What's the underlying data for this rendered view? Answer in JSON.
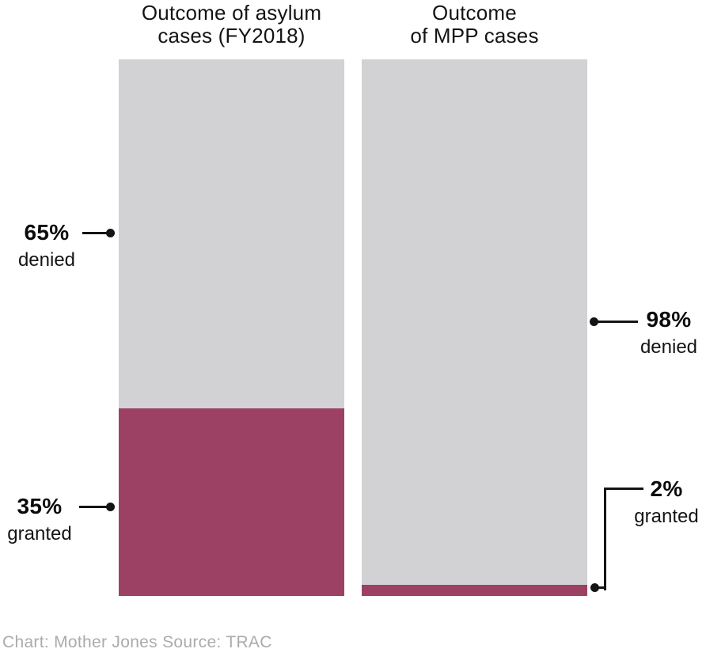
{
  "colors": {
    "denied": "#D2D2D4",
    "granted": "#9C4064",
    "connector": "#141414",
    "title_text": "#141414",
    "label_text": "#0B0B0B",
    "footer_text": "#ABABAF",
    "background": "#FFFFFF"
  },
  "columns": [
    {
      "title_line1": "Outcome of asylum",
      "title_line2": "cases (FY2018)",
      "denied_pct": 65,
      "granted_pct": 35,
      "denied_label_pct": "65%",
      "denied_label_word": "denied",
      "granted_label_pct": "35%",
      "granted_label_word": "granted"
    },
    {
      "title_line1": "Outcome",
      "title_line2": "of MPP cases",
      "denied_pct": 98,
      "granted_pct": 2,
      "denied_label_pct": "98%",
      "denied_label_word": "denied",
      "granted_label_pct": "2%",
      "granted_label_word": "granted"
    }
  ],
  "footer": {
    "chart_credit": "Chart: Mother Jones",
    "source": "Source: TRAC"
  },
  "chart_data": {
    "type": "bar",
    "subtype": "stacked-100pct-columns",
    "categories": [
      "Outcome of asylum cases (FY2018)",
      "Outcome of MPP cases"
    ],
    "series": [
      {
        "name": "denied",
        "values": [
          65,
          98
        ],
        "color": "#D2D2D4"
      },
      {
        "name": "granted",
        "values": [
          35,
          2
        ],
        "color": "#9C4064"
      }
    ],
    "ylim": [
      0,
      100
    ],
    "grid": false,
    "axes_visible": false,
    "legend": "direct-callout-labels",
    "annotations": [
      {
        "column": 0,
        "text": "65% denied",
        "side": "left"
      },
      {
        "column": 0,
        "text": "35% granted",
        "side": "left"
      },
      {
        "column": 1,
        "text": "98% denied",
        "side": "right"
      },
      {
        "column": 1,
        "text": "2% granted",
        "side": "right"
      }
    ],
    "footer": "Chart: Mother Jones Source: TRAC"
  }
}
